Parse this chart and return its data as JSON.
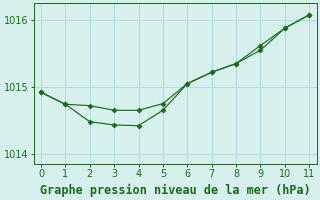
{
  "title": "Graphe pression niveau de la mer (hPa)",
  "background_color": "#d7f0ee",
  "line_color": "#1a6b1a",
  "xlim": [
    -0.3,
    11.3
  ],
  "ylim": [
    1013.85,
    1016.25
  ],
  "xticks": [
    0,
    1,
    2,
    3,
    4,
    5,
    6,
    7,
    8,
    9,
    10,
    11
  ],
  "yticks": [
    1014,
    1015,
    1016
  ],
  "series1_x": [
    0,
    1,
    2,
    3,
    4,
    5,
    6,
    7,
    8,
    9,
    10,
    11
  ],
  "series1_y": [
    1014.92,
    1014.74,
    1014.72,
    1014.65,
    1014.65,
    1014.75,
    1015.05,
    1015.22,
    1015.35,
    1015.62,
    1015.88,
    1016.08
  ],
  "series2_x": [
    0,
    1,
    2,
    3,
    4,
    5,
    6,
    7,
    8,
    9,
    10,
    11
  ],
  "series2_y": [
    1014.92,
    1014.74,
    1014.48,
    1014.43,
    1014.42,
    1014.65,
    1015.05,
    1015.22,
    1015.35,
    1015.55,
    1015.88,
    1016.08
  ],
  "grid_color": "#b0dede",
  "title_fontsize": 8.5,
  "tick_fontsize": 7
}
